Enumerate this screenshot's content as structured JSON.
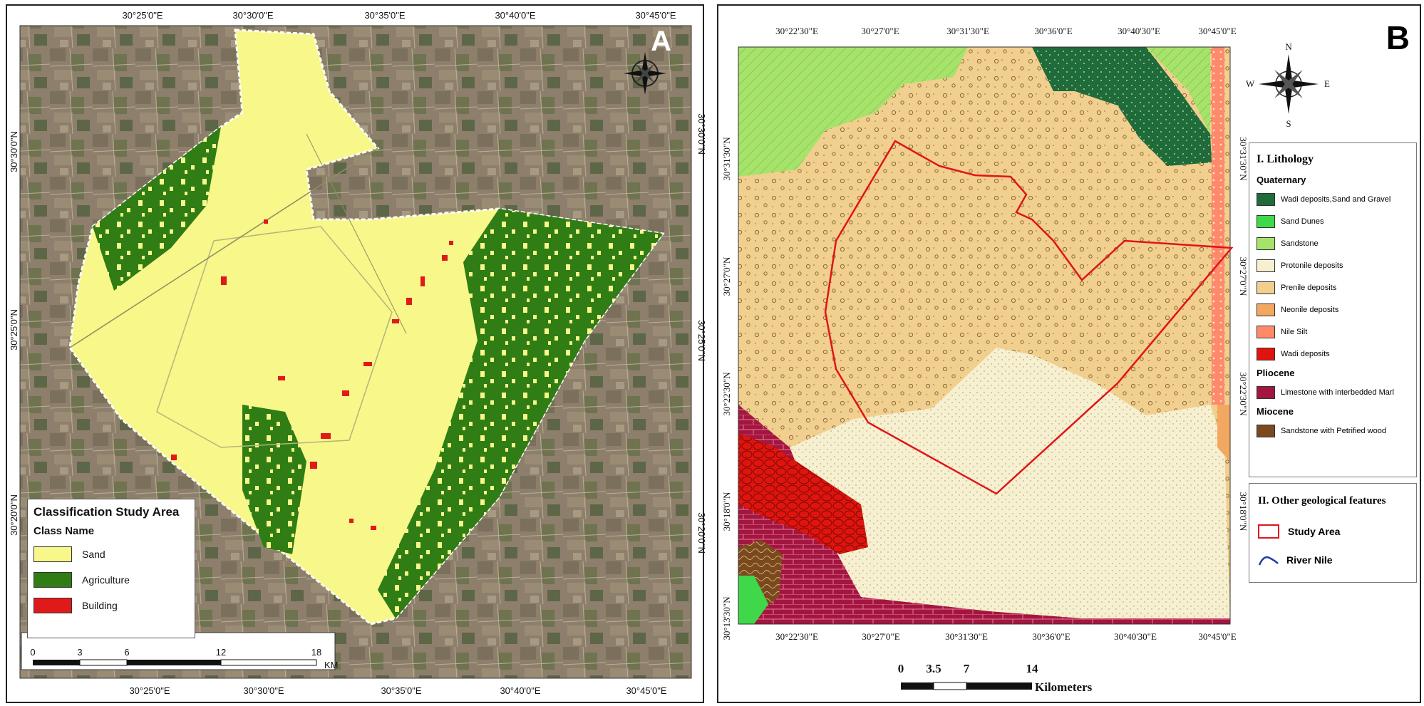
{
  "panel_a": {
    "letter": "A",
    "top_ticks": [
      "30°25'0\"E",
      "30°30'0\"E",
      "30°35'0\"E",
      "30°40'0\"E",
      "30°45'0\"E"
    ],
    "bottom_ticks": [
      "30°25'0\"E",
      "30°30'0\"E",
      "30°35'0\"E",
      "30°40'0\"E",
      "30°45'0\"E"
    ],
    "left_ticks": [
      "30°30'0\"N",
      "30°25'0\"N",
      "30°20'0\"N"
    ],
    "right_ticks": [
      "30°30'0\"N",
      "30°25'0\"N",
      "30°20'0\"N"
    ],
    "legend": {
      "title": "Classification Study Area",
      "subtitle": "Class Name",
      "classes": [
        {
          "name": "Sand",
          "color": "#f7f78a"
        },
        {
          "name": "Agriculture",
          "color": "#2f7d14"
        },
        {
          "name": "Building",
          "color": "#e01a1a"
        }
      ]
    },
    "scale_bar": {
      "labels": [
        "0",
        "3",
        "6",
        "12",
        "18"
      ],
      "unit": "KM"
    }
  },
  "panel_b": {
    "letter": "B",
    "compass": {
      "n": "N",
      "s": "S",
      "e": "E",
      "w": "W"
    },
    "top_ticks": [
      "30°22'30\"E",
      "30°27'0\"E",
      "30°31'30\"E",
      "30°36'0\"E",
      "30°40'30\"E",
      "30°45'0\"E"
    ],
    "bottom_ticks": [
      "30°22'30\"E",
      "30°27'0\"E",
      "30°31'30\"E",
      "30°36'0\"E",
      "30°40'30\"E",
      "30°45'0\"E"
    ],
    "left_ticks": [
      "30°31'30\"N",
      "30°27'0\"N",
      "30°22'30\"N",
      "30°18'0\"N",
      "30°13'30\"N"
    ],
    "right_ticks": [
      "30°31'30\"N",
      "30°27'0\"N",
      "30°22'30\"N",
      "30°18'0\"N"
    ],
    "legend": {
      "heading": "I. Lithology",
      "groups": [
        {
          "name": "Quaternary",
          "items": [
            {
              "name": "Wadi deposits,Sand and Gravel",
              "color": "#1f6b3a"
            },
            {
              "name": "Sand Dunes",
              "color": "#3fd84a"
            },
            {
              "name": "Sandstone",
              "color": "#a6e36a"
            },
            {
              "name": "Protonile deposits",
              "color": "#f7f0d0"
            },
            {
              "name": "Prenile deposits",
              "color": "#f1cf8e"
            },
            {
              "name": "Neonile deposits",
              "color": "#f2a860"
            },
            {
              "name": "Nile Silt",
              "color": "#ff8a6a"
            },
            {
              "name": "Wadi deposits",
              "color": "#e0140e"
            }
          ]
        },
        {
          "name": "Pliocene",
          "items": [
            {
              "name": "Limestone with interbedded Marl",
              "color": "#a3163f"
            }
          ]
        },
        {
          "name": "Miocene",
          "items": [
            {
              "name": "Sandstone with Petrified wood",
              "color": "#7a4a1e"
            }
          ]
        }
      ]
    },
    "legend2": {
      "heading": "II. Other geological features",
      "items": [
        {
          "name": "Study Area",
          "color": "#e0141a"
        },
        {
          "name": "River Nile",
          "color": "#1a3aa8"
        }
      ]
    },
    "scale_bar": {
      "labels": [
        "0",
        "3.5",
        "7",
        "14"
      ],
      "unit": "Kilometers"
    }
  }
}
